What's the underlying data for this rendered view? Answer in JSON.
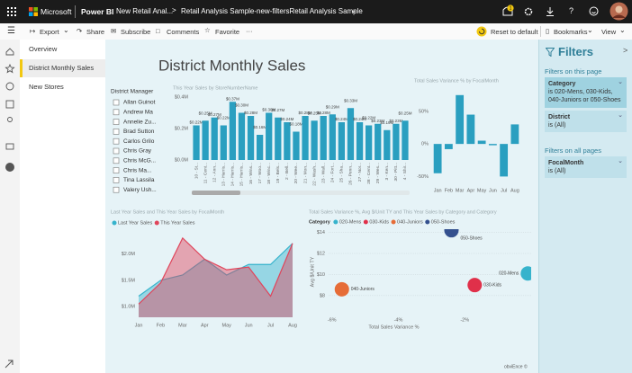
{
  "header": {
    "app": "Microsoft",
    "product": "Power BI",
    "workspace": "New Retail Anal...",
    "report": "Retail Analysis Sample-new-filtersRetail Analysis Sample",
    "notification_count": "1"
  },
  "toolbar": {
    "items": [
      "Export",
      "Share",
      "Subscribe",
      "Comments",
      "Favorite",
      "···"
    ],
    "reset": "Reset to default",
    "bookmarks": "Bookmarks",
    "view": "View"
  },
  "pages": {
    "items": [
      "Overview",
      "District Monthly Sales",
      "New Stores"
    ],
    "selected": 1
  },
  "report_title": "District Monthly Sales",
  "slicer": {
    "title": "District Manager",
    "items": [
      "Allan Guinot",
      "Andrew Ma",
      "Annelie Zu...",
      "Brad Sutton",
      "Carlos Grilo",
      "Chris Gray",
      "Chris McG...",
      "Chris Ma...",
      "Tina Lassila",
      "Valery Ush..."
    ]
  },
  "filters": {
    "title": "Filters",
    "this_page": "Filters on this page",
    "page_filters": [
      {
        "name": "Category",
        "value": "is 020-Mens, 030-Kids, 040-Juniors or 050-Shoes"
      },
      {
        "name": "District",
        "value": "is (All)"
      }
    ],
    "all_pages": "Filters on all pages",
    "all_filters": [
      {
        "name": "FocalMonth",
        "value": "is (All)"
      }
    ]
  },
  "footer": "obviEnce ©",
  "chart_data": [
    {
      "type": "bar",
      "title": "This Year Sales by StoreNumberName",
      "color": "#2a9fc0",
      "grid": false,
      "categories": [
        "10 - St...",
        "11 - Cent...",
        "12 - Ann...",
        "13 - Harris...",
        "14 - Harris...",
        "15 - Harris...",
        "16 - Wins...",
        "17 - Woo...",
        "18 - Winc...",
        "19 - Bels...",
        "2 - Bell...",
        "20 - Wee...",
        "21 - Mon...",
        "22 - Wash...",
        "23 - Wall...",
        "24 - Fort...",
        "25 - Sha...",
        "26 - Penn...",
        "27 - Nor...",
        "28 - Cent...",
        "29 - Wes...",
        "3 - Ken...",
        "30 - Pitt...",
        "4 - Shir..."
      ],
      "values": [
        0.22,
        0.25,
        0.27,
        0.22,
        0.37,
        0.3,
        0.28,
        0.16,
        0.3,
        0.27,
        0.24,
        0.18,
        0.28,
        0.25,
        0.28,
        0.29,
        0.24,
        0.33,
        0.24,
        0.22,
        0.23,
        0.19,
        0.23,
        0.25
      ],
      "value_labels": [
        "$0.22M",
        "$0.25M",
        "$0.27M",
        "$0.22M",
        "$0.37M",
        "$0.30M",
        "$0.28M",
        "$0.16M",
        "$0.30M",
        "$0.27M",
        "$0.24M",
        "$0.18M",
        "$0.28M",
        "$0.25M",
        "$0.28M",
        "$0.29M",
        "$0.24M",
        "$0.33M",
        "$0.24M",
        "$0.22M",
        "$0.23M",
        "$0.19M",
        "$0.23M",
        "$0.25M"
      ],
      "ylim": [
        0,
        0.4
      ],
      "yticks": [
        {
          "value": 0,
          "label": "$0.0M"
        },
        {
          "value": 0.2,
          "label": "$0.2M"
        },
        {
          "value": 0.4,
          "label": "$0.4M"
        }
      ]
    },
    {
      "type": "bar",
      "title": "Total Sales Variance % by FocalMonth",
      "color": "#2a9fc0",
      "grid": false,
      "categories": [
        "Jan",
        "Feb",
        "Mar",
        "Apr",
        "May",
        "Jun",
        "Jul",
        "Aug"
      ],
      "values": [
        -45,
        -8,
        75,
        45,
        5,
        -2,
        -50,
        30
      ],
      "ylim": [
        -55,
        83
      ],
      "yticks": [
        {
          "value": -50,
          "label": "-50%"
        },
        {
          "value": 0,
          "label": "0%"
        },
        {
          "value": 50,
          "label": "50%"
        }
      ]
    },
    {
      "type": "area",
      "title": "Last Year Sales and This Year Sales by FocalMonth",
      "grid": false,
      "categories": [
        "Jan",
        "Feb",
        "Mar",
        "Apr",
        "May",
        "Jun",
        "Jul",
        "Aug"
      ],
      "series": [
        {
          "name": "Last Year Sales",
          "color": "#36b3cc",
          "values": [
            1.2,
            1.5,
            1.6,
            1.9,
            1.6,
            1.8,
            1.8,
            2.2
          ]
        },
        {
          "name": "This Year Sales",
          "color": "#e0455b",
          "values": [
            1.05,
            1.45,
            2.3,
            1.9,
            1.7,
            1.75,
            1.2,
            2.2
          ]
        }
      ],
      "ylim": [
        0.8,
        2.4
      ],
      "yticks": [
        {
          "value": 1.0,
          "label": "$1.0M"
        },
        {
          "value": 1.5,
          "label": "$1.5M"
        },
        {
          "value": 2.0,
          "label": "$2.0M"
        }
      ]
    },
    {
      "type": "scatter",
      "title": "Total Sales Variance %, Avg $/Unit TY and This Year Sales by Category and Category",
      "grid": true,
      "legend_title": "Category",
      "x_label": "Total Sales Variance %",
      "y_label": "Avg $/Unit TY",
      "series": [
        {
          "name": "020-Mens",
          "color": "#36b3cc",
          "x": [
            -0.1
          ],
          "values": [
            10.1
          ]
        },
        {
          "name": "030-Kids",
          "color": "#e0304a",
          "x": [
            -1.7
          ],
          "values": [
            9.0
          ]
        },
        {
          "name": "040-Juniors",
          "color": "#e66c37",
          "x": [
            -5.7
          ],
          "values": [
            8.6
          ]
        },
        {
          "name": "050-Shoes",
          "color": "#34508e",
          "x": [
            -2.4
          ],
          "values": [
            14.2
          ]
        }
      ],
      "xlim": [
        -6.1,
        0
      ],
      "xticks": [
        {
          "value": -6,
          "label": "-6%"
        },
        {
          "value": -4,
          "label": "-4%"
        },
        {
          "value": -2,
          "label": "-2%"
        }
      ],
      "ylim": [
        6.2,
        14.3
      ],
      "yticks": [
        {
          "value": 8,
          "label": "$8"
        },
        {
          "value": 10,
          "label": "$10"
        },
        {
          "value": 12,
          "label": "$12"
        },
        {
          "value": 14,
          "label": "$14"
        }
      ]
    }
  ]
}
